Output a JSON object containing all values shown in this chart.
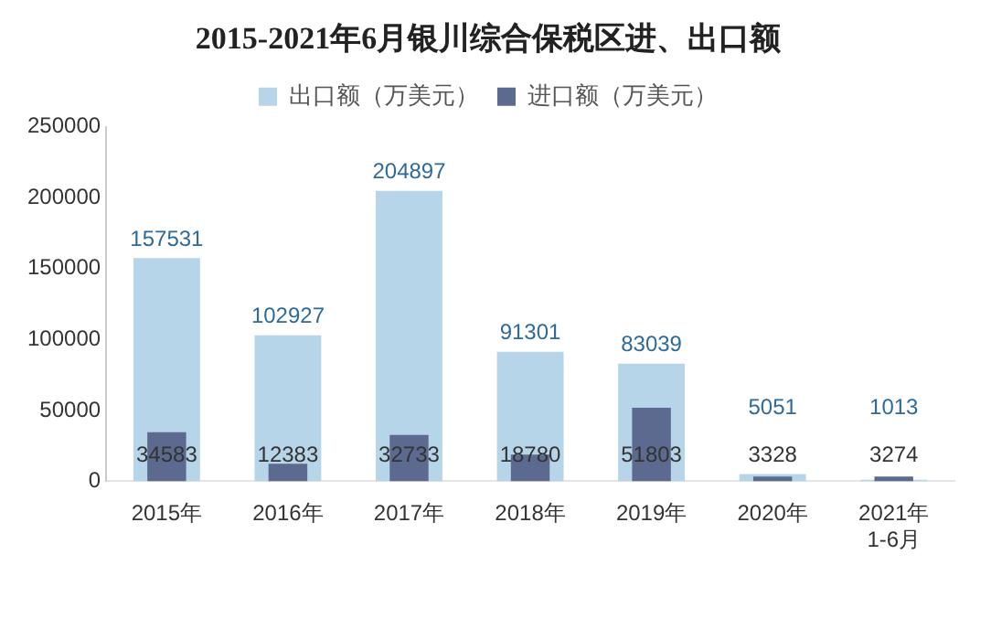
{
  "chart_data": {
    "type": "bar",
    "title": "2015-2021年6月银川综合保税区进、出口额",
    "categories": [
      "2015年",
      "2016年",
      "2017年",
      "2018年",
      "2019年",
      "2020年",
      "2021年\n1-6月"
    ],
    "series": [
      {
        "name": "出口额（万美元）",
        "color": "#b7d5e8",
        "values": [
          157531,
          102927,
          204897,
          91301,
          83039,
          5051,
          1013
        ]
      },
      {
        "name": "进口额（万美元）",
        "color": "#5b6a8e",
        "values": [
          34583,
          12383,
          32733,
          18780,
          51803,
          3328,
          3274
        ]
      }
    ],
    "ylim": [
      0,
      250000
    ],
    "yticks": [
      0,
      50000,
      100000,
      150000,
      200000,
      250000
    ],
    "grid": false,
    "legend": "top",
    "data_labels": true
  }
}
